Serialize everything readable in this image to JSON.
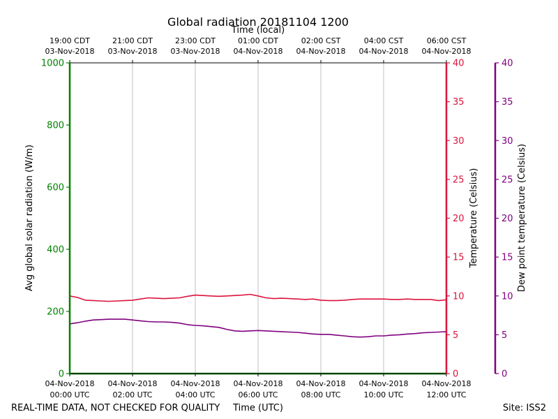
{
  "chart_data": {
    "type": "line",
    "title": "Global radiation 20181104 1200",
    "top_axis_label": "Time (local)",
    "xlabel": "Time (UTC)",
    "footer_left": "REAL-TIME DATA, NOT CHECKED FOR QUALITY",
    "footer_right": "Site: ISS2",
    "x_unit": "hours since 04-Nov-2018 00:00 UTC",
    "xlim": [
      0,
      12
    ],
    "bottom_ticks": [
      {
        "x": 0,
        "line1": "04-Nov-2018",
        "line2": "00:00 UTC"
      },
      {
        "x": 2,
        "line1": "04-Nov-2018",
        "line2": "02:00 UTC"
      },
      {
        "x": 4,
        "line1": "04-Nov-2018",
        "line2": "04:00 UTC"
      },
      {
        "x": 6,
        "line1": "04-Nov-2018",
        "line2": "06:00 UTC"
      },
      {
        "x": 8,
        "line1": "04-Nov-2018",
        "line2": "08:00 UTC"
      },
      {
        "x": 10,
        "line1": "04-Nov-2018",
        "line2": "10:00 UTC"
      },
      {
        "x": 12,
        "line1": "04-Nov-2018",
        "line2": "12:00 UTC"
      }
    ],
    "top_ticks": [
      {
        "x": 0,
        "line1": "19:00 CDT",
        "line2": "03-Nov-2018"
      },
      {
        "x": 2,
        "line1": "21:00 CDT",
        "line2": "03-Nov-2018"
      },
      {
        "x": 4,
        "line1": "23:00 CDT",
        "line2": "03-Nov-2018"
      },
      {
        "x": 6,
        "line1": "01:00 CDT",
        "line2": "04-Nov-2018"
      },
      {
        "x": 8,
        "line1": "02:00 CST",
        "line2": "04-Nov-2018"
      },
      {
        "x": 10,
        "line1": "04:00 CST",
        "line2": "04-Nov-2018"
      },
      {
        "x": 12,
        "line1": "06:00 CST",
        "line2": "04-Nov-2018"
      }
    ],
    "grid_x": true,
    "axes": {
      "radiation": {
        "label": "Avg global solar radiation (W/m)",
        "ylim": [
          0,
          1000
        ],
        "ticks": [
          0,
          200,
          400,
          600,
          800,
          1000
        ],
        "color": "#008000"
      },
      "temperature": {
        "label": "Temperature (Celsius)",
        "ylim": [
          0,
          40
        ],
        "ticks": [
          0,
          5,
          10,
          15,
          20,
          25,
          30,
          35,
          40
        ],
        "color": "#dc143c"
      },
      "dewpoint": {
        "label": "Dew point temperature (Celsius)",
        "ylim": [
          0,
          40
        ],
        "ticks": [
          0,
          5,
          10,
          15,
          20,
          25,
          30,
          35,
          40
        ],
        "color": "#800080"
      }
    },
    "series": [
      {
        "axis": "radiation",
        "color": "#008000",
        "x": [
          0,
          12
        ],
        "y": [
          0,
          0
        ]
      },
      {
        "axis": "temperature",
        "color": "#dc143c",
        "x": [
          0,
          0.25,
          0.5,
          0.75,
          1.0,
          1.25,
          1.5,
          1.75,
          2.0,
          2.25,
          2.5,
          2.75,
          3.0,
          3.25,
          3.5,
          3.75,
          4.0,
          4.25,
          4.5,
          4.75,
          5.0,
          5.25,
          5.5,
          5.75,
          6.0,
          6.25,
          6.5,
          6.75,
          7.0,
          7.25,
          7.5,
          7.75,
          8.0,
          8.25,
          8.5,
          8.75,
          9.0,
          9.25,
          9.5,
          9.75,
          10.0,
          10.25,
          10.5,
          10.75,
          11.0,
          11.25,
          11.5,
          11.75,
          12.0
        ],
        "y": [
          10.0,
          9.8,
          9.45,
          9.4,
          9.35,
          9.3,
          9.35,
          9.4,
          9.45,
          9.6,
          9.75,
          9.7,
          9.65,
          9.7,
          9.75,
          9.95,
          10.1,
          10.05,
          10.0,
          9.95,
          10.0,
          10.05,
          10.1,
          10.2,
          10.0,
          9.75,
          9.65,
          9.7,
          9.65,
          9.6,
          9.55,
          9.6,
          9.45,
          9.4,
          9.4,
          9.45,
          9.55,
          9.6,
          9.6,
          9.6,
          9.6,
          9.55,
          9.55,
          9.6,
          9.55,
          9.55,
          9.55,
          9.4,
          9.5
        ]
      },
      {
        "axis": "dewpoint",
        "color": "#800080",
        "x": [
          0,
          0.25,
          0.5,
          0.75,
          1.0,
          1.25,
          1.5,
          1.75,
          2.0,
          2.25,
          2.5,
          2.75,
          3.0,
          3.25,
          3.5,
          3.75,
          4.0,
          4.25,
          4.5,
          4.75,
          5.0,
          5.25,
          5.5,
          5.75,
          6.0,
          6.25,
          6.5,
          6.75,
          7.0,
          7.25,
          7.5,
          7.75,
          8.0,
          8.25,
          8.5,
          8.75,
          9.0,
          9.25,
          9.5,
          9.75,
          10.0,
          10.25,
          10.5,
          10.75,
          11.0,
          11.25,
          11.5,
          11.75,
          12.0
        ],
        "y": [
          6.4,
          6.55,
          6.75,
          6.9,
          6.95,
          7.0,
          7.0,
          7.0,
          6.9,
          6.8,
          6.7,
          6.65,
          6.65,
          6.6,
          6.5,
          6.3,
          6.2,
          6.15,
          6.05,
          5.95,
          5.7,
          5.5,
          5.45,
          5.5,
          5.55,
          5.5,
          5.45,
          5.4,
          5.35,
          5.3,
          5.2,
          5.1,
          5.05,
          5.05,
          4.95,
          4.85,
          4.75,
          4.7,
          4.75,
          4.85,
          4.85,
          4.95,
          5.0,
          5.1,
          5.15,
          5.25,
          5.3,
          5.35,
          5.4
        ]
      }
    ]
  }
}
